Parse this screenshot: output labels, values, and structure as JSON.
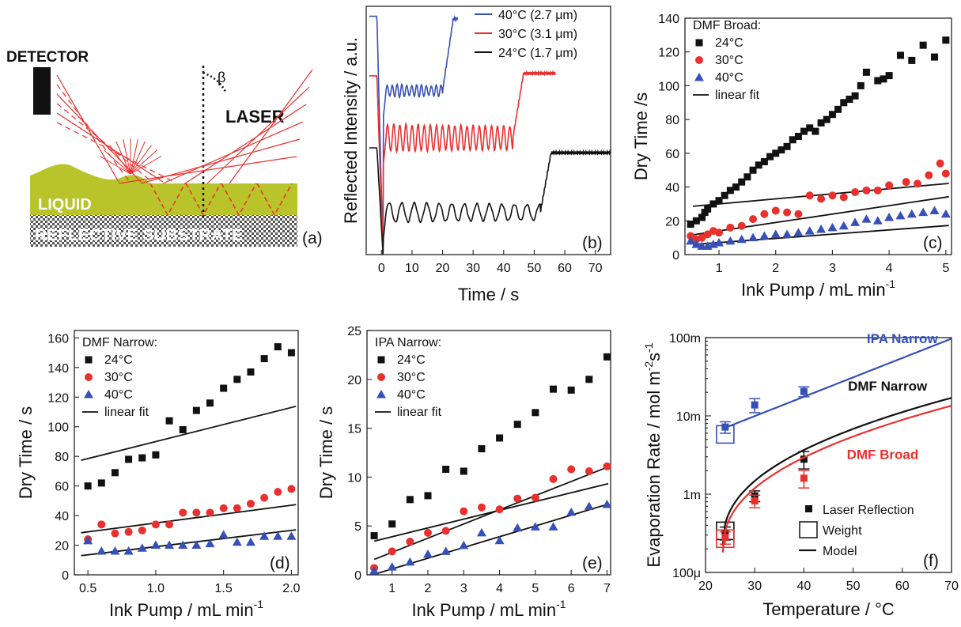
{
  "colors": {
    "black": "#111111",
    "red": "#e8312f",
    "blue": "#3650b7",
    "liquid": "#b8c42a",
    "pattern": "#555555"
  },
  "schematic": {
    "label_detector": "DETECTOR",
    "label_laser": "LASER",
    "label_beta": "β",
    "label_liquid": "LIQUID",
    "label_substrate": "REFLECTIVE SUBSTRATE",
    "panel_label": "(a)"
  },
  "chart_data": [
    {
      "id": "b",
      "type": "line",
      "panel_label": "(b)",
      "xlabel": "Time / s",
      "ylabel": "Reflected Intensity / a.u.",
      "xlim": [
        -5,
        75
      ],
      "xticks": [
        0,
        10,
        20,
        30,
        40,
        50,
        60,
        70
      ],
      "yticks_visible": false,
      "series": [
        {
          "name": "40°C (2.7 μm)",
          "color": "blue",
          "t_dry": 20,
          "end": 25,
          "plateau": 0.95,
          "base": 0.66,
          "amp": 0.025,
          "period": 1.6,
          "amp_decay": 0.3,
          "pre": 0.96
        },
        {
          "name": "30°C (3.1 μm)",
          "color": "red",
          "t_dry": 43,
          "end": 57,
          "plateau": 0.73,
          "base": 0.47,
          "amp": 0.055,
          "period": 2.0,
          "amp_decay": 0.1,
          "pre": 0.72
        },
        {
          "name": "24°C (1.7 μm)",
          "color": "black",
          "t_dry": 52,
          "end": 75,
          "plateau": 0.41,
          "base": 0.17,
          "amp": 0.04,
          "period": 4.1,
          "amp_decay": 0.15,
          "pre": 0.43
        }
      ]
    },
    {
      "id": "c",
      "type": "scatter",
      "panel_label": "(c)",
      "xlabel": "Ink Pump / mL min",
      "xlabel_sup": "-1",
      "ylabel": "Dry Time /s",
      "xlim": [
        0.4,
        5.1
      ],
      "ylim": [
        0,
        140
      ],
      "xticks": [
        1,
        2,
        3,
        4,
        5
      ],
      "yticks": [
        0,
        20,
        40,
        60,
        80,
        100,
        120,
        140
      ],
      "legend_title": "DMF Broad:",
      "fit_label": "linear fit",
      "series": [
        {
          "name": "24°C",
          "color": "black",
          "marker": "square",
          "x": [
            0.5,
            0.6,
            0.7,
            0.75,
            0.8,
            0.9,
            1.0,
            1.1,
            1.2,
            1.3,
            1.4,
            1.5,
            1.6,
            1.7,
            1.8,
            1.9,
            2.0,
            2.1,
            2.2,
            2.3,
            2.4,
            2.5,
            2.6,
            2.7,
            2.8,
            2.9,
            3.0,
            3.1,
            3.2,
            3.3,
            3.4,
            3.5,
            3.6,
            3.8,
            3.9,
            4.0,
            4.2,
            4.4,
            4.6,
            4.8,
            5.0
          ],
          "y": [
            18,
            20,
            22,
            25,
            27,
            30,
            32,
            35,
            38,
            40,
            43,
            46,
            50,
            53,
            55,
            58,
            60,
            62,
            64,
            68,
            70,
            73,
            75,
            73,
            78,
            80,
            83,
            86,
            90,
            92,
            94,
            100,
            108,
            103,
            104,
            106,
            118,
            115,
            124,
            117,
            127
          ],
          "fit": [
            3,
            27
          ]
        },
        {
          "name": "30°C",
          "color": "red",
          "marker": "circle",
          "x": [
            0.5,
            0.6,
            0.7,
            0.8,
            0.9,
            1.0,
            1.2,
            1.4,
            1.6,
            1.8,
            2.0,
            2.2,
            2.4,
            2.6,
            2.8,
            3.0,
            3.2,
            3.4,
            3.6,
            3.8,
            4.0,
            4.3,
            4.5,
            4.7,
            4.9,
            5.0
          ],
          "y": [
            11,
            9,
            10,
            12,
            14,
            13,
            16,
            17,
            21,
            24,
            26,
            25,
            24,
            35,
            33,
            35,
            34,
            37,
            38,
            38,
            41,
            43,
            42,
            47,
            54,
            48
          ],
          "fit": [
            5,
            9
          ]
        },
        {
          "name": "40°C",
          "color": "blue",
          "marker": "triangle",
          "x": [
            0.5,
            0.6,
            0.7,
            0.8,
            0.9,
            1.0,
            1.2,
            1.4,
            1.6,
            1.8,
            2.0,
            2.2,
            2.4,
            2.6,
            2.8,
            3.0,
            3.2,
            3.4,
            3.6,
            3.8,
            4.0,
            4.2,
            4.4,
            4.6,
            4.8,
            5.0
          ],
          "y": [
            8,
            6,
            5,
            5,
            6,
            7,
            8,
            9,
            10,
            11,
            12,
            12,
            13,
            14,
            15,
            16,
            17,
            19,
            21,
            20,
            22,
            23,
            24,
            25,
            26,
            24
          ],
          "fit": [
            2.5,
            4.6
          ]
        }
      ]
    },
    {
      "id": "d",
      "type": "scatter",
      "panel_label": "(d)",
      "xlabel": "Ink Pump / mL min",
      "xlabel_sup": "-1",
      "ylabel": "Dry Time / s",
      "xlim": [
        0.4,
        2.05
      ],
      "ylim": [
        0,
        165
      ],
      "xticks": [
        0.5,
        1.0,
        1.5,
        2.0
      ],
      "xtick_labels": [
        "0.5",
        "1.0",
        "1.5",
        "2.0"
      ],
      "yticks": [
        0,
        20,
        40,
        60,
        80,
        100,
        120,
        140,
        160
      ],
      "legend_title": "DMF Narrow:",
      "fit_label": "linear fit",
      "series": [
        {
          "name": "24°C",
          "color": "black",
          "marker": "square",
          "x": [
            0.5,
            0.6,
            0.7,
            0.8,
            0.9,
            1.0,
            1.1,
            1.2,
            1.3,
            1.4,
            1.5,
            1.6,
            1.7,
            1.8,
            1.9,
            2.0
          ],
          "y": [
            60,
            62,
            69,
            78,
            79,
            81,
            104,
            98,
            111,
            116,
            126,
            132,
            137,
            146,
            154,
            150
          ],
          "fit": [
            23,
            67
          ]
        },
        {
          "name": "30°C",
          "color": "red",
          "marker": "circle",
          "x": [
            0.5,
            0.6,
            0.7,
            0.8,
            0.9,
            1.0,
            1.1,
            1.2,
            1.3,
            1.4,
            1.5,
            1.6,
            1.7,
            1.8,
            1.9,
            2.0
          ],
          "y": [
            24,
            34,
            28,
            29,
            30,
            34,
            34,
            42,
            42,
            42,
            45,
            45,
            48,
            52,
            56,
            58
          ],
          "fit": [
            12,
            23
          ]
        },
        {
          "name": "40°C",
          "color": "blue",
          "marker": "triangle",
          "x": [
            0.5,
            0.6,
            0.7,
            0.8,
            0.9,
            1.0,
            1.1,
            1.2,
            1.3,
            1.4,
            1.5,
            1.6,
            1.7,
            1.8,
            1.9,
            2.0
          ],
          "y": [
            23,
            16,
            16,
            16,
            18,
            20,
            20,
            20,
            20,
            21,
            27,
            22,
            22,
            26,
            26,
            26
          ],
          "fit": [
            11,
            8
          ]
        }
      ]
    },
    {
      "id": "e",
      "type": "scatter",
      "panel_label": "(e)",
      "xlabel": "Ink Pump / mL min",
      "xlabel_sup": "-1",
      "ylabel": "Dry Time / s",
      "xlim": [
        0.3,
        7.1
      ],
      "ylim": [
        0,
        25
      ],
      "xticks": [
        1,
        2,
        3,
        4,
        5,
        6,
        7
      ],
      "yticks": [
        0,
        5,
        10,
        15,
        20,
        25
      ],
      "legend_title": "IPA Narrow:",
      "fit_label": "linear fit",
      "series": [
        {
          "name": "24°C",
          "color": "black",
          "marker": "square",
          "x": [
            0.5,
            1.0,
            1.5,
            2.0,
            2.5,
            3.0,
            3.5,
            4.0,
            4.5,
            5.0,
            5.5,
            6.0,
            6.5,
            7.0
          ],
          "y": [
            4.0,
            5.2,
            7.7,
            8.1,
            10.8,
            10.6,
            12.9,
            14.0,
            15.4,
            16.6,
            19.0,
            18.9,
            20.0,
            22.3
          ],
          "fit": [
            0.9,
            3.0
          ]
        },
        {
          "name": "30°C",
          "color": "red",
          "marker": "circle",
          "x": [
            0.5,
            1.0,
            1.5,
            2.0,
            2.5,
            3.0,
            3.5,
            4.0,
            4.5,
            5.0,
            5.5,
            6.0,
            6.5,
            7.0
          ],
          "y": [
            0.7,
            2.4,
            3.4,
            4.3,
            4.5,
            6.5,
            6.9,
            6.7,
            7.8,
            7.9,
            9.8,
            10.8,
            10.6,
            11.1
          ],
          "fit": [
            1.45,
            0.85
          ]
        },
        {
          "name": "40°C",
          "color": "blue",
          "marker": "triangle",
          "x": [
            0.5,
            1.0,
            1.5,
            2.0,
            2.5,
            3.0,
            3.5,
            4.0,
            4.5,
            5.0,
            5.5,
            6.0,
            6.5,
            7.0
          ],
          "y": [
            0.4,
            0.8,
            1.3,
            2.1,
            2.4,
            3.0,
            4.3,
            3.5,
            4.8,
            4.9,
            4.9,
            6.4,
            7.0,
            7.2
          ],
          "fit": [
            1.1,
            -0.5
          ]
        }
      ]
    },
    {
      "id": "f",
      "type": "scatter",
      "panel_label": "(f)",
      "xlabel": "Temperature / °C",
      "ylabel": "Evaporation Rate / mol m",
      "ylabel_sup": "-2",
      "ylabel_tail": "s",
      "ylabel_sup2": "-1",
      "xlim": [
        20,
        70
      ],
      "ylim": [
        0.0001,
        0.1
      ],
      "yscale": "log",
      "xticks": [
        20,
        30,
        40,
        50,
        60,
        70
      ],
      "yticks": [
        0.0001,
        0.001,
        0.01,
        0.1
      ],
      "ytick_labels": [
        "100μ",
        "1m",
        "10m",
        "100m"
      ],
      "legend": [
        "Laser Reflection",
        "Weight",
        "Model"
      ],
      "curve_labels": [
        {
          "text": "IPA Narrow",
          "color": "blue",
          "x": 60,
          "y": 0.085
        },
        {
          "text": "DMF Narrow",
          "color": "black",
          "x": 57,
          "y": 0.021
        },
        {
          "text": "DMF Broad",
          "color": "red",
          "x": 56,
          "y": 0.0028
        }
      ],
      "series": [
        {
          "name": "IPA Narrow",
          "color": "blue",
          "points_x": [
            24,
            30,
            40
          ],
          "points_y": [
            0.0072,
            0.0138,
            0.0205
          ],
          "err": [
            0.0012,
            0.0028,
            0.003
          ],
          "weight_x": 24,
          "weight_y": 0.0058,
          "model": {
            "kind": "power",
            "T0": 24,
            "y0": 0.0063,
            "T1": 70,
            "y1": 0.097
          }
        },
        {
          "name": "DMF Narrow",
          "color": "black",
          "points_x": [
            24,
            30,
            40
          ],
          "points_y": [
            0.00032,
            0.00095,
            0.0028
          ],
          "err": [
            6e-05,
            0.00015,
            0.0007
          ],
          "weight_x": 24,
          "weight_y": 0.00034,
          "model": {
            "kind": "sqrt",
            "T0": 23.5,
            "y0": 0.00022,
            "T1": 70,
            "y1": 0.017
          }
        },
        {
          "name": "DMF Broad",
          "color": "red",
          "points_x": [
            24,
            30,
            40
          ],
          "points_y": [
            0.00028,
            0.00082,
            0.0016
          ],
          "err": [
            5e-05,
            0.00015,
            0.0004
          ],
          "weight_x": 24,
          "weight_y": 0.00027,
          "model": {
            "kind": "sqrt",
            "T0": 23.5,
            "y0": 0.00018,
            "T1": 70,
            "y1": 0.0135
          }
        }
      ]
    }
  ]
}
